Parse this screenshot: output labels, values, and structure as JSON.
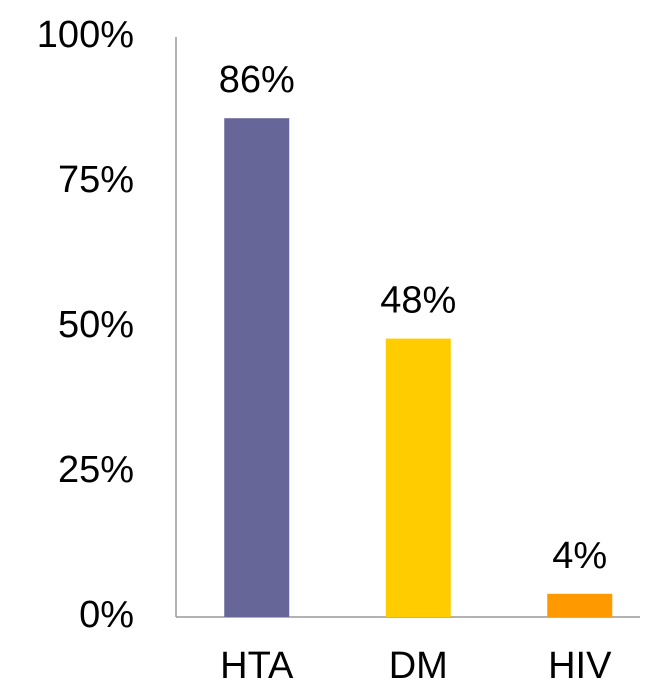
{
  "chart_data": {
    "type": "bar",
    "categories": [
      "HTA",
      "DM",
      "HIV"
    ],
    "values": [
      86,
      48,
      4
    ],
    "value_labels": [
      "86%",
      "48%",
      "4%"
    ],
    "colors": [
      "#666699",
      "#ffcc00",
      "#ff9900"
    ],
    "ylim": [
      0,
      100
    ],
    "yticks": [
      {
        "value": 0,
        "label": "0%"
      },
      {
        "value": 25,
        "label": "25%"
      },
      {
        "value": 50,
        "label": "50%"
      },
      {
        "value": 75,
        "label": "75%"
      },
      {
        "value": 100,
        "label": "100%"
      }
    ],
    "grid": false
  }
}
